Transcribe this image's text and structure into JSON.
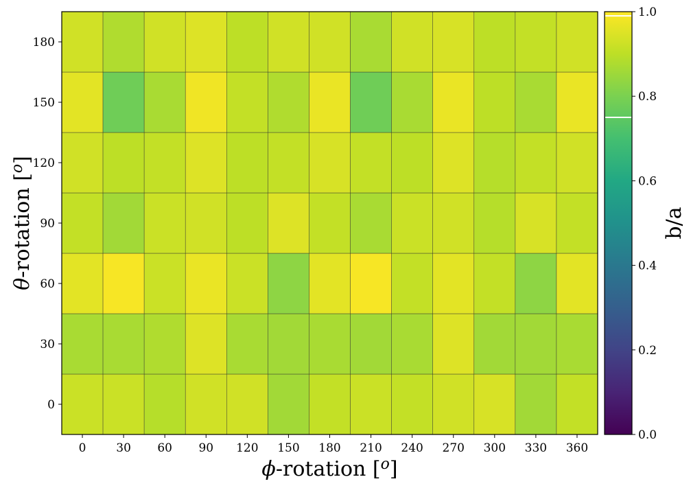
{
  "chart_data": {
    "type": "heatmap",
    "xlabel": "ϕ-rotation [o]",
    "ylabel": "θ-rotation [o]",
    "x_categories": [
      "0",
      "30",
      "60",
      "90",
      "120",
      "150",
      "180",
      "210",
      "240",
      "270",
      "300",
      "330",
      "360"
    ],
    "y_categories": [
      "0",
      "30",
      "60",
      "90",
      "120",
      "150",
      "180"
    ],
    "values": [
      [
        0.92,
        0.92,
        0.89,
        0.93,
        0.93,
        0.86,
        0.91,
        0.92,
        0.91,
        0.93,
        0.94,
        0.86,
        0.91
      ],
      [
        0.87,
        0.87,
        0.88,
        0.95,
        0.87,
        0.86,
        0.87,
        0.86,
        0.87,
        0.95,
        0.86,
        0.86,
        0.87
      ],
      [
        0.96,
        0.99,
        0.92,
        0.97,
        0.92,
        0.83,
        0.96,
        0.99,
        0.91,
        0.96,
        0.91,
        0.83,
        0.96
      ],
      [
        0.91,
        0.86,
        0.92,
        0.93,
        0.9,
        0.95,
        0.91,
        0.87,
        0.92,
        0.93,
        0.89,
        0.94,
        0.91
      ],
      [
        0.93,
        0.9,
        0.91,
        0.95,
        0.9,
        0.91,
        0.94,
        0.91,
        0.9,
        0.95,
        0.89,
        0.91,
        0.93
      ],
      [
        0.96,
        0.78,
        0.87,
        0.98,
        0.91,
        0.88,
        0.97,
        0.78,
        0.87,
        0.97,
        0.9,
        0.87,
        0.97
      ],
      [
        0.93,
        0.88,
        0.93,
        0.95,
        0.9,
        0.93,
        0.93,
        0.87,
        0.93,
        0.94,
        0.9,
        0.91,
        0.93
      ]
    ],
    "colorbar": {
      "label": "b/a",
      "range": [
        0.0,
        1.0
      ],
      "ticks": [
        "0.0",
        "0.2",
        "0.4",
        "0.6",
        "0.8",
        "1.0"
      ],
      "marker_lines": [
        0.99,
        0.75
      ],
      "colormap": "viridis"
    },
    "grid": false
  }
}
